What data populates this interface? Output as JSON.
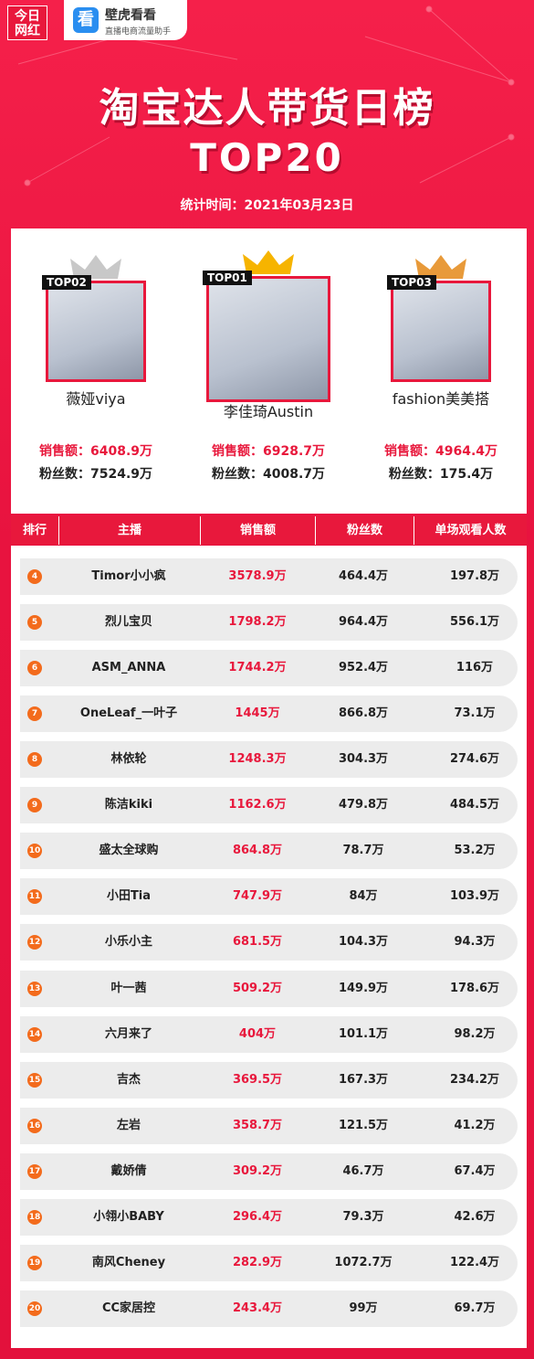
{
  "header": {
    "logo_left": "今日\n网红",
    "logo_right": "看",
    "brand": "壁虎看看",
    "brand_sub": "直播电商流量助手",
    "title": "淘宝达人带货日榜",
    "subtitle": "TOP20",
    "date": "统计时间：2021年03月23日"
  },
  "podium": [
    {
      "badge": "TOP02",
      "name": "薇娅viya",
      "sales_label": "销售额：",
      "sales": "6408.9万",
      "fans_label": "粉丝数：",
      "fans": "7524.9万"
    },
    {
      "badge": "TOP01",
      "name": "李佳琦Austin",
      "sales_label": "销售额：",
      "sales": "6928.7万",
      "fans_label": "粉丝数：",
      "fans": "4008.7万"
    },
    {
      "badge": "TOP03",
      "name": "fashion美美搭",
      "sales_label": "销售额：",
      "sales": "4964.4万",
      "fans_label": "粉丝数：",
      "fans": "175.4万"
    }
  ],
  "table": {
    "columns": [
      "排行",
      "主播",
      "销售额",
      "粉丝数",
      "单场观看人数"
    ],
    "rows": [
      [
        "4",
        "Timor小小疯",
        "3578.9万",
        "464.4万",
        "197.8万"
      ],
      [
        "5",
        "烈儿宝贝",
        "1798.2万",
        "964.4万",
        "556.1万"
      ],
      [
        "6",
        "ASM_ANNA",
        "1744.2万",
        "952.4万",
        "116万"
      ],
      [
        "7",
        "OneLeaf_一叶子",
        "1445万",
        "866.8万",
        "73.1万"
      ],
      [
        "8",
        "林依轮",
        "1248.3万",
        "304.3万",
        "274.6万"
      ],
      [
        "9",
        "陈洁kiki",
        "1162.6万",
        "479.8万",
        "484.5万"
      ],
      [
        "10",
        "盛太全球购",
        "864.8万",
        "78.7万",
        "53.2万"
      ],
      [
        "11",
        "小田Tia",
        "747.9万",
        "84万",
        "103.9万"
      ],
      [
        "12",
        "小乐小主",
        "681.5万",
        "104.3万",
        "94.3万"
      ],
      [
        "13",
        "叶一茜",
        "509.2万",
        "149.9万",
        "178.6万"
      ],
      [
        "14",
        "六月来了",
        "404万",
        "101.1万",
        "98.2万"
      ],
      [
        "15",
        "吉杰",
        "369.5万",
        "167.3万",
        "234.2万"
      ],
      [
        "16",
        "左岩",
        "358.7万",
        "121.5万",
        "41.2万"
      ],
      [
        "17",
        "戴娇倩",
        "309.2万",
        "46.7万",
        "67.4万"
      ],
      [
        "18",
        "小翎小BABY",
        "296.4万",
        "79.3万",
        "42.6万"
      ],
      [
        "19",
        "南风Cheney",
        "282.9万",
        "1072.7万",
        "122.4万"
      ],
      [
        "20",
        "CC家居控",
        "243.4万",
        "99万",
        "69.7万"
      ]
    ]
  }
}
